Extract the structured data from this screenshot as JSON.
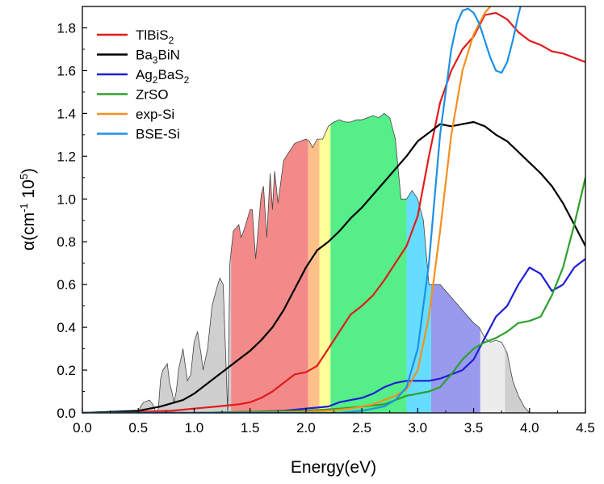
{
  "chart_data": {
    "type": "line",
    "title": "",
    "xlabel": "Energy(eV)",
    "ylabel": "α(cm-1 105)",
    "ylabel_parts": {
      "prefix": "α(cm",
      "exp1": "-1",
      "mid": " 10",
      "exp2": "5",
      "suffix": ")"
    },
    "xlim": [
      0.0,
      4.5
    ],
    "ylim": [
      0.0,
      1.9
    ],
    "xticks": [
      "0.0",
      "0.5",
      "1.0",
      "1.5",
      "2.0",
      "2.5",
      "3.0",
      "3.5",
      "4.0",
      "4.5"
    ],
    "yticks": [
      "0.0",
      "0.2",
      "0.4",
      "0.6",
      "0.8",
      "1.0",
      "1.2",
      "1.4",
      "1.6",
      "1.8"
    ],
    "grid": false,
    "legend_position": "top-left",
    "spectrum_background": {
      "name": "solar-spectrum",
      "x": [
        0.0,
        0.5,
        0.52,
        0.55,
        0.6,
        0.63,
        0.66,
        0.68,
        0.7,
        0.72,
        0.76,
        0.78,
        0.8,
        0.82,
        0.84,
        0.86,
        0.9,
        0.94,
        0.97,
        1.0,
        1.03,
        1.06,
        1.08,
        1.12,
        1.16,
        1.2,
        1.23,
        1.26,
        1.3,
        1.32,
        1.35,
        1.4,
        1.42,
        1.45,
        1.5,
        1.52,
        1.55,
        1.6,
        1.62,
        1.65,
        1.68,
        1.7,
        1.72,
        1.75,
        1.8,
        1.85,
        1.9,
        1.95,
        2.0,
        2.03,
        2.06,
        2.1,
        2.15,
        2.2,
        2.25,
        2.3,
        2.35,
        2.4,
        2.45,
        2.5,
        2.55,
        2.6,
        2.65,
        2.7,
        2.75,
        2.8,
        2.85,
        2.9,
        2.95,
        3.0,
        3.05,
        3.1,
        3.15,
        3.2,
        3.3,
        3.4,
        3.5,
        3.55,
        3.6,
        3.65,
        3.7,
        3.75,
        3.8,
        3.85,
        3.9,
        3.95,
        4.0,
        4.5
      ],
      "y": [
        0.0,
        0.0,
        0.03,
        0.05,
        0.06,
        0.04,
        0.0,
        0.02,
        0.16,
        0.2,
        0.23,
        0.14,
        0.1,
        0.05,
        0.1,
        0.2,
        0.3,
        0.15,
        0.18,
        0.33,
        0.38,
        0.28,
        0.2,
        0.3,
        0.5,
        0.58,
        0.63,
        0.6,
        0.0,
        0.7,
        0.85,
        0.88,
        0.82,
        0.86,
        0.95,
        0.95,
        0.72,
        1.02,
        1.06,
        0.82,
        1.12,
        0.95,
        1.13,
        0.98,
        1.18,
        1.22,
        1.26,
        1.27,
        1.28,
        1.27,
        1.24,
        1.28,
        1.28,
        1.34,
        1.36,
        1.37,
        1.36,
        1.36,
        1.37,
        1.37,
        1.38,
        1.39,
        1.38,
        1.4,
        1.38,
        1.28,
        1.0,
        1.0,
        1.04,
        1.0,
        0.9,
        0.6,
        0.6,
        0.6,
        0.54,
        0.48,
        0.42,
        0.4,
        0.35,
        0.33,
        0.34,
        0.33,
        0.28,
        0.15,
        0.08,
        0.03,
        0.0,
        0.0
      ],
      "bands": [
        {
          "name": "band-gray-1",
          "range": [
            0.0,
            1.33
          ],
          "color": "#cfcfcf"
        },
        {
          "name": "band-red",
          "range": [
            1.33,
            2.02
          ],
          "color": "#f28a8a"
        },
        {
          "name": "band-orange",
          "range": [
            2.02,
            2.12
          ],
          "color": "#ffc08a"
        },
        {
          "name": "band-yellow",
          "range": [
            2.12,
            2.22
          ],
          "color": "#ffff99"
        },
        {
          "name": "band-green",
          "range": [
            2.22,
            2.9
          ],
          "color": "#55ee88"
        },
        {
          "name": "band-cyan",
          "range": [
            2.9,
            3.12
          ],
          "color": "#66ddff"
        },
        {
          "name": "band-violet",
          "range": [
            3.12,
            3.56
          ],
          "color": "#9999ee"
        },
        {
          "name": "band-light-gray",
          "range": [
            3.56,
            3.78
          ],
          "color": "#ececec"
        },
        {
          "name": "band-gray-2",
          "range": [
            3.78,
            4.5
          ],
          "color": "#cfcfcf"
        }
      ]
    },
    "series": [
      {
        "name": "TlBiS2",
        "label_parts": {
          "base": "TlBiS",
          "sub": "2",
          "tail": ""
        },
        "color": "#e31a1c",
        "x": [
          0,
          0.5,
          0.8,
          1.0,
          1.2,
          1.4,
          1.5,
          1.6,
          1.7,
          1.8,
          1.9,
          2.0,
          2.1,
          2.2,
          2.3,
          2.4,
          2.5,
          2.6,
          2.7,
          2.8,
          2.9,
          3.0,
          3.1,
          3.2,
          3.3,
          3.4,
          3.5,
          3.6,
          3.7,
          3.8,
          3.9,
          4.0,
          4.1,
          4.2,
          4.3,
          4.4,
          4.5
        ],
        "y": [
          0,
          0.005,
          0.01,
          0.02,
          0.03,
          0.04,
          0.05,
          0.07,
          0.1,
          0.14,
          0.18,
          0.19,
          0.22,
          0.3,
          0.38,
          0.46,
          0.5,
          0.55,
          0.62,
          0.7,
          0.78,
          0.92,
          1.2,
          1.45,
          1.6,
          1.7,
          1.76,
          1.86,
          1.87,
          1.84,
          1.78,
          1.74,
          1.72,
          1.69,
          1.68,
          1.66,
          1.64
        ]
      },
      {
        "name": "Ba3BiN",
        "label_parts": {
          "base": "Ba",
          "sub": "3",
          "tail": "BiN"
        },
        "color": "#000000",
        "x": [
          0,
          0.5,
          0.7,
          0.9,
          1.0,
          1.2,
          1.4,
          1.5,
          1.6,
          1.7,
          1.8,
          1.9,
          2.0,
          2.1,
          2.2,
          2.3,
          2.4,
          2.5,
          2.6,
          2.7,
          2.8,
          2.9,
          3.0,
          3.1,
          3.2,
          3.3,
          3.4,
          3.5,
          3.6,
          3.7,
          3.8,
          3.9,
          4.0,
          4.1,
          4.2,
          4.3,
          4.4,
          4.5
        ],
        "y": [
          0,
          0.01,
          0.03,
          0.06,
          0.09,
          0.17,
          0.25,
          0.29,
          0.34,
          0.4,
          0.48,
          0.58,
          0.68,
          0.76,
          0.8,
          0.85,
          0.91,
          0.96,
          1.02,
          1.08,
          1.14,
          1.2,
          1.27,
          1.31,
          1.35,
          1.34,
          1.35,
          1.36,
          1.34,
          1.3,
          1.27,
          1.22,
          1.17,
          1.12,
          1.06,
          0.98,
          0.88,
          0.78
        ]
      },
      {
        "name": "Ag2BaS2",
        "label_parts": {
          "base": "Ag",
          "sub": "2",
          "tail": "BaS",
          "sub2": "2"
        },
        "color": "#1f1fd6",
        "x": [
          0,
          1.0,
          1.5,
          1.8,
          2.0,
          2.2,
          2.3,
          2.4,
          2.5,
          2.6,
          2.7,
          2.8,
          2.9,
          3.0,
          3.1,
          3.2,
          3.3,
          3.4,
          3.5,
          3.6,
          3.7,
          3.8,
          3.9,
          4.0,
          4.1,
          4.2,
          4.3,
          4.4,
          4.5
        ],
        "y": [
          0,
          0.0,
          0.005,
          0.01,
          0.02,
          0.03,
          0.05,
          0.06,
          0.07,
          0.09,
          0.12,
          0.14,
          0.15,
          0.15,
          0.15,
          0.16,
          0.18,
          0.2,
          0.25,
          0.35,
          0.45,
          0.5,
          0.6,
          0.68,
          0.65,
          0.57,
          0.6,
          0.68,
          0.72
        ]
      },
      {
        "name": "ZrSO",
        "label_parts": {
          "base": "ZrSO",
          "sub": "",
          "tail": ""
        },
        "color": "#2ca02c",
        "x": [
          0,
          1.0,
          1.5,
          2.0,
          2.3,
          2.5,
          2.7,
          2.8,
          2.9,
          3.0,
          3.1,
          3.2,
          3.3,
          3.4,
          3.5,
          3.6,
          3.7,
          3.8,
          3.9,
          4.0,
          4.1,
          4.2,
          4.3,
          4.4,
          4.5
        ],
        "y": [
          0,
          0.0,
          0.005,
          0.01,
          0.02,
          0.03,
          0.04,
          0.06,
          0.08,
          0.09,
          0.1,
          0.12,
          0.18,
          0.25,
          0.3,
          0.33,
          0.35,
          0.38,
          0.42,
          0.43,
          0.45,
          0.55,
          0.68,
          0.88,
          1.1
        ]
      },
      {
        "name": "exp-Si",
        "label_parts": {
          "base": "exp-Si",
          "sub": "",
          "tail": ""
        },
        "color": "#f5901e",
        "x": [
          0,
          1.1,
          1.5,
          2.0,
          2.2,
          2.4,
          2.5,
          2.6,
          2.7,
          2.8,
          2.9,
          3.0,
          3.1,
          3.2,
          3.3,
          3.4,
          3.5,
          3.6,
          3.65
        ],
        "y": [
          0,
          0.0,
          0.0,
          0.005,
          0.01,
          0.02,
          0.03,
          0.04,
          0.06,
          0.08,
          0.11,
          0.2,
          0.45,
          0.85,
          1.3,
          1.6,
          1.77,
          1.87,
          1.9
        ]
      },
      {
        "name": "BSE-Si",
        "label_parts": {
          "base": "BSE-Si",
          "sub": "",
          "tail": ""
        },
        "color": "#1e90e6",
        "x": [
          0,
          2.3,
          2.5,
          2.7,
          2.8,
          2.9,
          3.0,
          3.1,
          3.2,
          3.3,
          3.35,
          3.4,
          3.45,
          3.5,
          3.55,
          3.6,
          3.65,
          3.7,
          3.75,
          3.8,
          3.85,
          3.9,
          3.92
        ],
        "y": [
          0,
          0.0,
          0.01,
          0.03,
          0.06,
          0.12,
          0.3,
          0.7,
          1.3,
          1.7,
          1.82,
          1.88,
          1.89,
          1.87,
          1.82,
          1.74,
          1.66,
          1.6,
          1.59,
          1.64,
          1.74,
          1.86,
          1.9
        ]
      }
    ]
  }
}
